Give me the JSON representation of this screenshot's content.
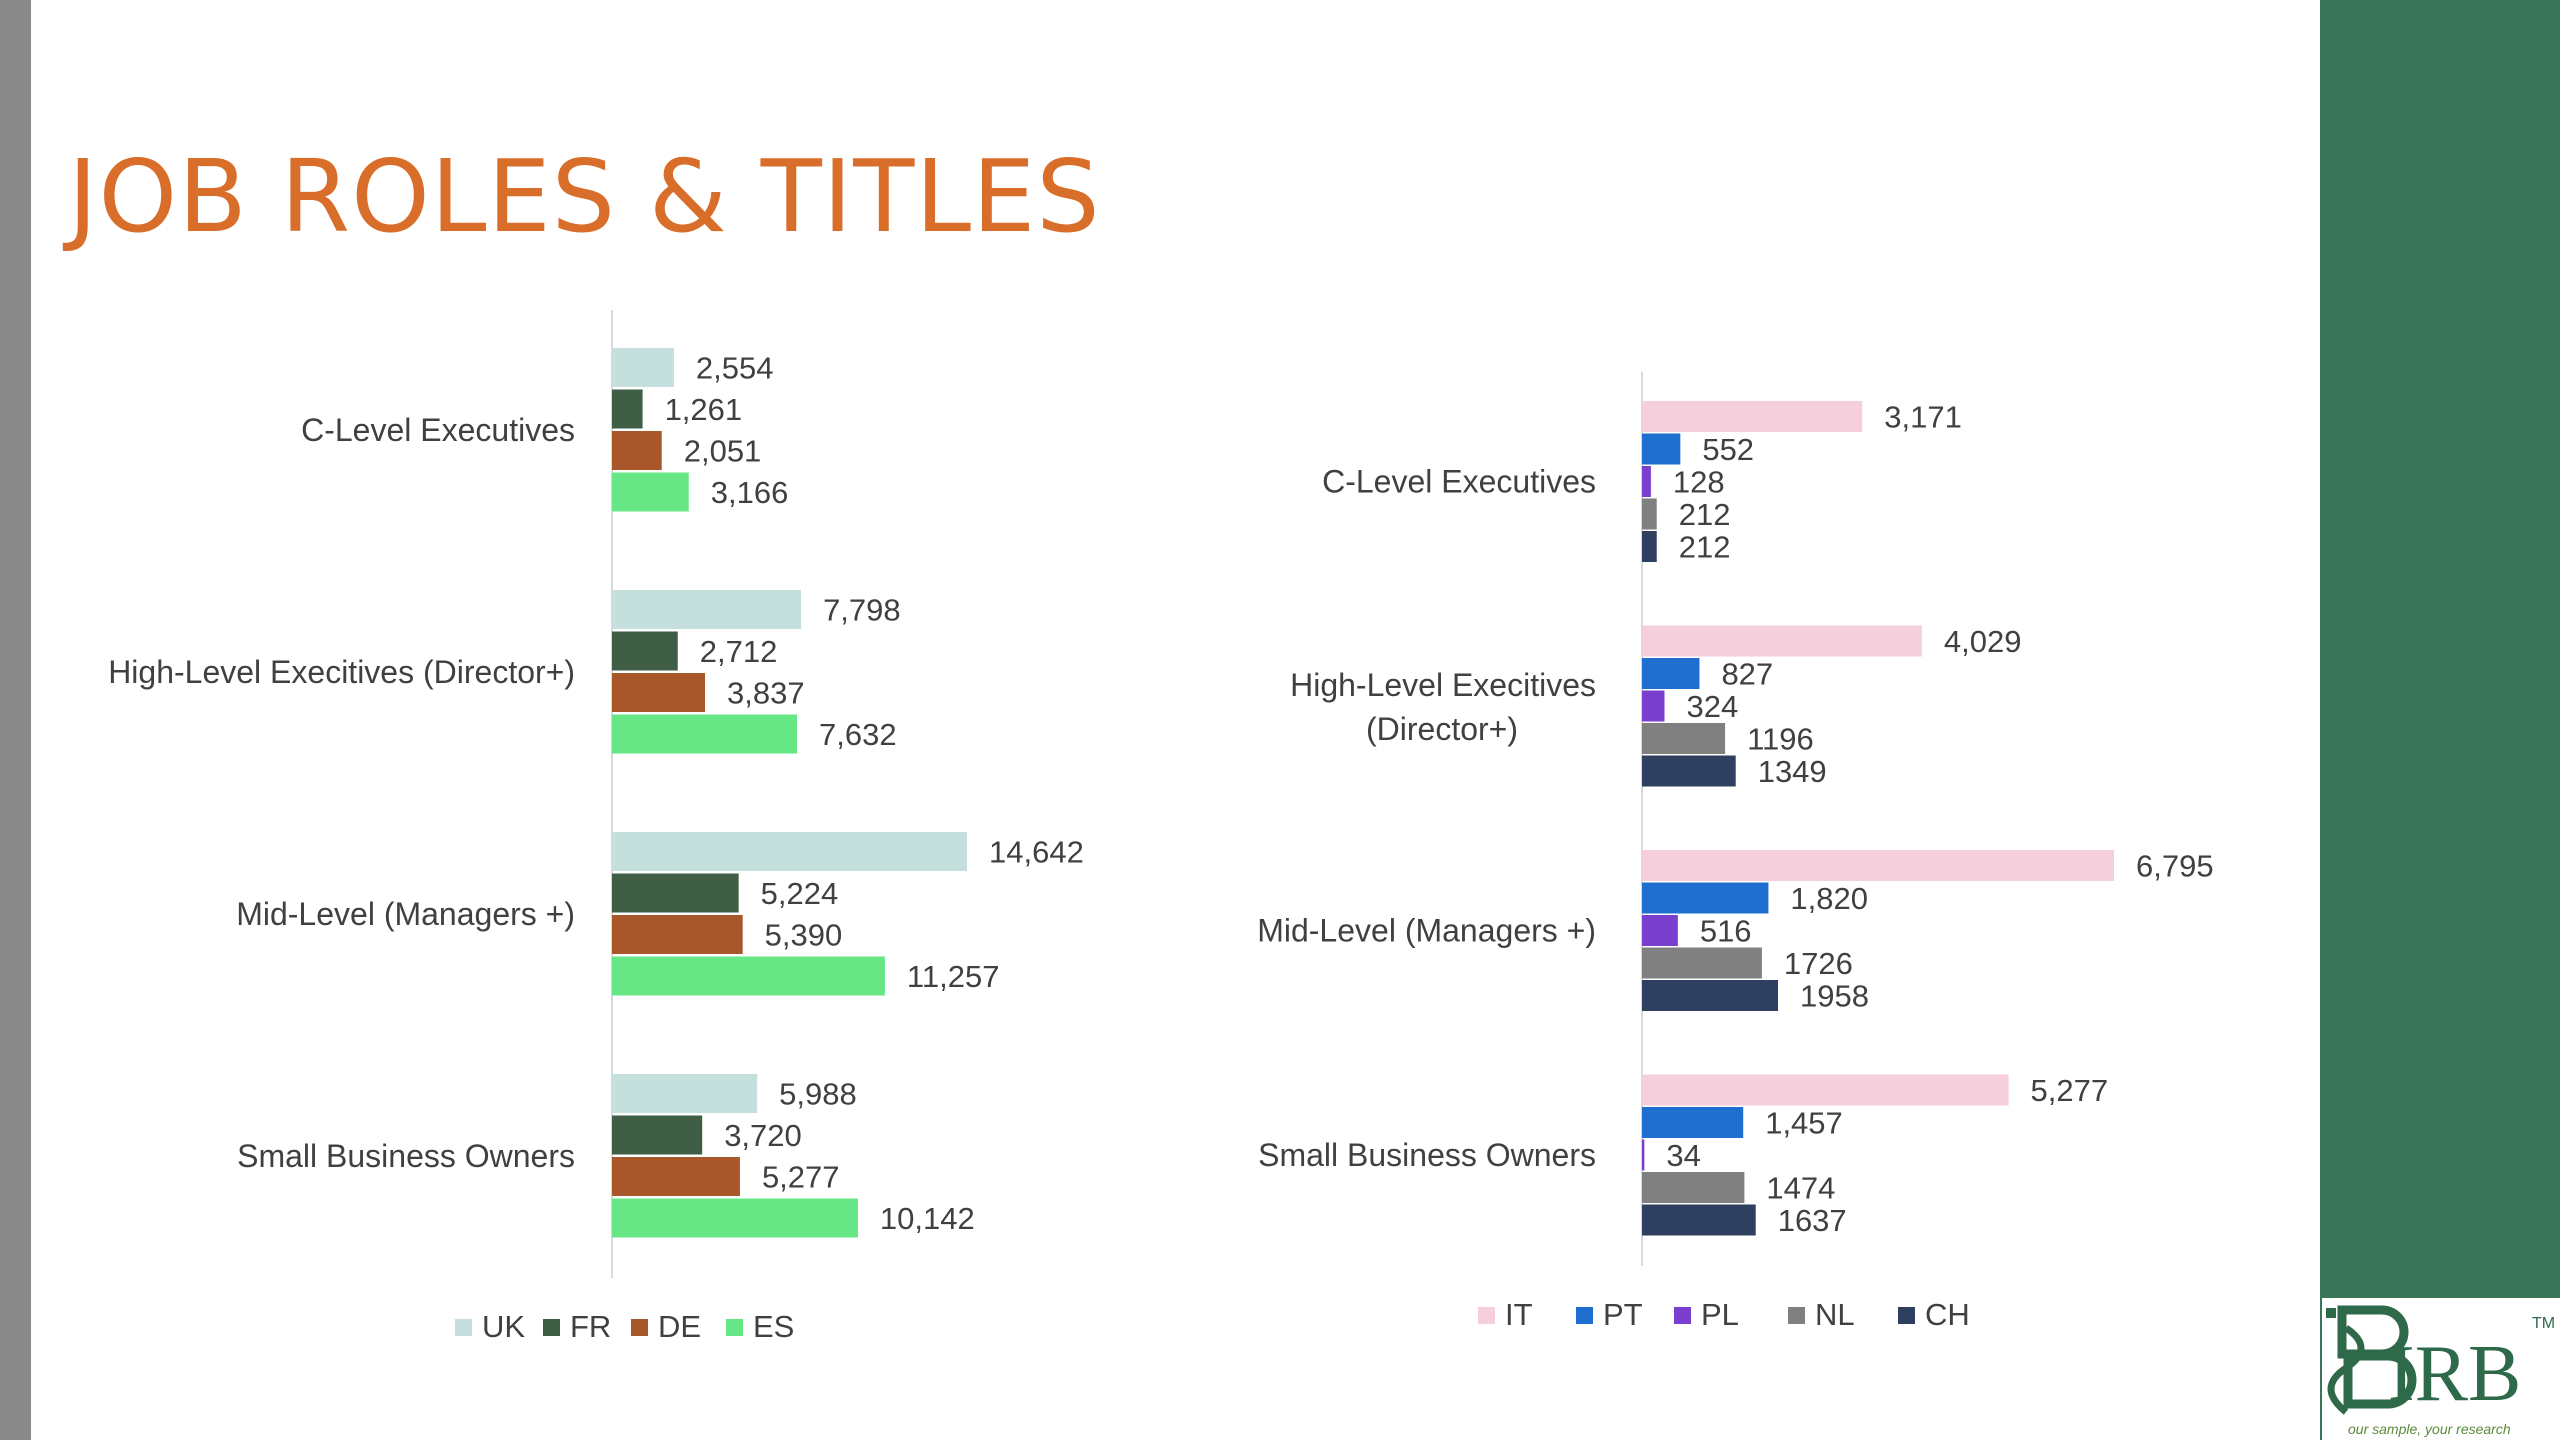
{
  "slide": {
    "title": "JOB ROLES & TITLES",
    "logo_text": "IRB",
    "logo_mark": "TM",
    "logo_tagline": "our sample, your research"
  },
  "colors": {
    "title": "#d96d2a",
    "side_panel": "#3b7559",
    "left_rail": "#8a8a8a"
  },
  "chart_data": [
    {
      "type": "bar",
      "orientation": "horizontal",
      "categories": [
        "C-Level Executives",
        "High-Level Execitives (Director+)",
        "Mid-Level (Managers +)",
        "Small Business Owners"
      ],
      "series": [
        {
          "name": "UK",
          "color": "#c5e0dc",
          "values": [
            2554,
            7798,
            14642,
            5988
          ],
          "labels": [
            "2,554",
            "7,798",
            "14,642",
            "5,988"
          ]
        },
        {
          "name": "FR",
          "color": "#3f5e45",
          "values": [
            1261,
            2712,
            5224,
            3720
          ],
          "labels": [
            "1,261",
            "2,712",
            "5,224",
            "3,720"
          ]
        },
        {
          "name": "DE",
          "color": "#a8572a",
          "values": [
            2051,
            3837,
            5390,
            5277
          ],
          "labels": [
            "2,051",
            "3,837",
            "5,390",
            "5,277"
          ]
        },
        {
          "name": "ES",
          "color": "#66e685",
          "values": [
            3166,
            7632,
            11257,
            10142
          ],
          "labels": [
            "3,166",
            "7,632",
            "11,257",
            "10,142"
          ]
        }
      ],
      "legend_position": "bottom",
      "grid": false
    },
    {
      "type": "bar",
      "orientation": "horizontal",
      "categories": [
        "C-Level Executives",
        "High-Level Execitives (Director+)",
        "Mid-Level (Managers +)",
        "Small Business Owners"
      ],
      "series": [
        {
          "name": "IT",
          "color": "#f6cfdc",
          "values": [
            3171,
            4029,
            6795,
            5277
          ],
          "labels": [
            "3,171",
            "4,029",
            "6,795",
            "5,277"
          ]
        },
        {
          "name": "PT",
          "color": "#1f6fd0",
          "values": [
            552,
            827,
            1820,
            1457
          ],
          "labels": [
            "552",
            "827",
            "1,820",
            "1,457"
          ]
        },
        {
          "name": "PL",
          "color": "#7a3fcf",
          "values": [
            128,
            324,
            516,
            34
          ],
          "labels": [
            "128",
            "324",
            "516",
            "34"
          ]
        },
        {
          "name": "NL",
          "color": "#808080",
          "values": [
            212,
            1196,
            1726,
            1474
          ],
          "labels": [
            "212",
            "1196",
            "1726",
            "1474"
          ]
        },
        {
          "name": "CH",
          "color": "#2f3f5f",
          "values": [
            212,
            1349,
            1958,
            1637
          ],
          "labels": [
            "212",
            "1349",
            "1958",
            "1637"
          ]
        }
      ],
      "legend_position": "bottom",
      "grid": false
    }
  ]
}
